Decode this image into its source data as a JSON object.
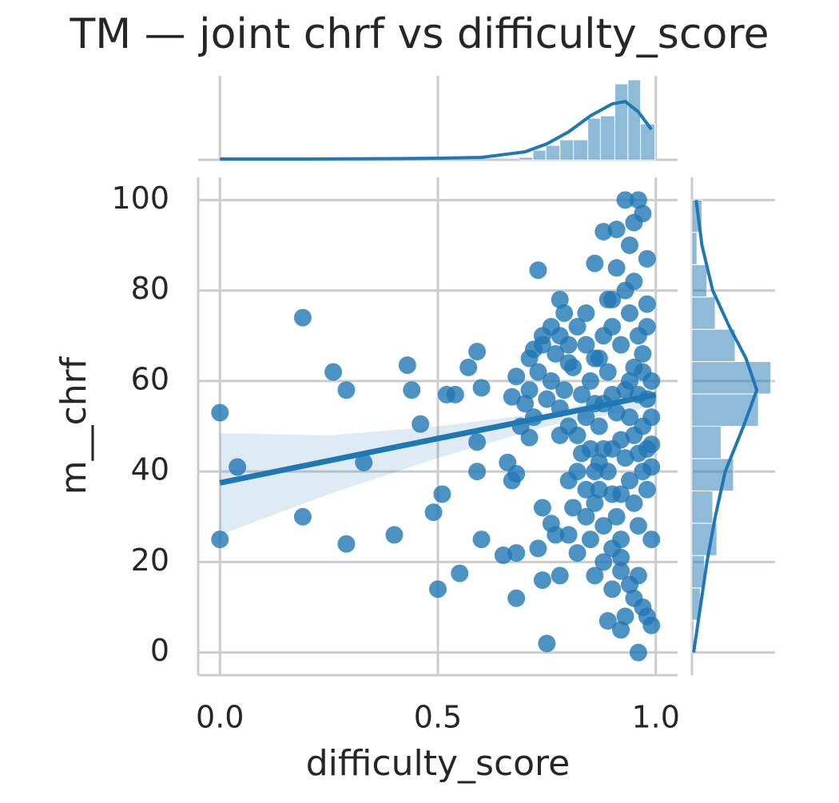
{
  "chart_data": {
    "type": "scatter",
    "title": "TM — joint chrf vs difficulty_score",
    "x_label": "difficulty_score",
    "y_label": "m__chrf",
    "xlim": [
      -0.05,
      1.05
    ],
    "ylim": [
      -5,
      105
    ],
    "xticks": [
      {
        "value": 0,
        "label": "0.0"
      },
      0.5,
      {
        "value": 1,
        "label": "1.0"
      }
    ],
    "yticks": [
      0,
      20,
      40,
      60,
      80,
      100
    ],
    "grid": true,
    "color": "#1f77b4",
    "series": [
      {
        "x": [
          0.0,
          0.0,
          0.04,
          0.19,
          0.19,
          0.26,
          0.29,
          0.29,
          0.33,
          0.4,
          0.43,
          0.44,
          0.46,
          0.49,
          0.5,
          0.51,
          0.52,
          0.54,
          0.55,
          0.57,
          0.59,
          0.59,
          0.59,
          0.6,
          0.6,
          0.65,
          0.66,
          0.67,
          0.67,
          0.68,
          0.68,
          0.68,
          0.68,
          0.71,
          0.71,
          0.72,
          0.73,
          0.73,
          0.74,
          0.74,
          0.75,
          0.76,
          0.77,
          0.78,
          0.78,
          0.79,
          0.78,
          0.8,
          0.8,
          0.82,
          0.84,
          0.84,
          0.86,
          0.86,
          0.87,
          0.88,
          0.88,
          0.89,
          0.9,
          0.9,
          0.91,
          0.92,
          0.92,
          0.93,
          0.94,
          0.95,
          0.96,
          0.96,
          0.97,
          0.98,
          0.98,
          0.99,
          0.99,
          0.99,
          0.98,
          0.85,
          0.86,
          0.87,
          0.88,
          0.89,
          0.9,
          0.91,
          0.92,
          0.93,
          0.94,
          0.95,
          0.96,
          0.97,
          0.98,
          0.99,
          0.85,
          0.86,
          0.87,
          0.88,
          0.89,
          0.9,
          0.91,
          0.92,
          0.93,
          0.94,
          0.95,
          0.96,
          0.97,
          0.98,
          0.99,
          0.84,
          0.83,
          0.82,
          0.81,
          0.8,
          0.79,
          0.78,
          0.77,
          0.76,
          0.75,
          0.74,
          0.73,
          0.72,
          0.71,
          0.7,
          0.69,
          0.9,
          0.92,
          0.94,
          0.96,
          0.98,
          0.93,
          0.95,
          0.97,
          0.91,
          0.89,
          0.87,
          0.86,
          0.88,
          0.9,
          0.92,
          0.94,
          0.96,
          0.97,
          0.95,
          0.93,
          0.85,
          0.84,
          0.83,
          0.82,
          0.81,
          0.8,
          0.95,
          0.96,
          0.97,
          0.98,
          0.99,
          0.94,
          0.92,
          0.9,
          0.88,
          0.86,
          0.84,
          0.82,
          0.8,
          0.78,
          0.76,
          0.74
        ],
        "values": [
          53,
          25,
          41,
          74,
          30,
          62,
          58,
          24,
          42,
          26,
          63.5,
          58,
          50.5,
          31,
          14,
          35,
          57,
          57,
          17.5,
          63,
          66.5,
          46.5,
          40,
          58.5,
          25,
          21.5,
          42,
          56.5,
          38,
          12,
          61,
          22,
          39.5,
          65,
          47.5,
          67,
          84.5,
          23,
          32,
          16,
          2,
          28.5,
          26,
          17,
          78,
          75,
          48,
          38,
          26,
          22,
          30,
          75,
          17,
          86,
          36,
          93,
          20,
          7,
          14,
          78,
          93.5,
          5,
          21,
          100,
          90,
          95,
          100,
          0,
          97,
          87,
          8,
          6,
          25,
          60,
          77,
          60,
          55,
          50,
          45,
          40,
          35,
          30,
          25,
          58,
          52,
          48,
          44,
          40,
          36,
          52,
          45,
          40,
          65,
          70,
          62,
          57,
          53,
          47,
          43,
          38,
          33,
          28,
          62,
          56,
          46,
          52,
          57,
          48,
          63,
          68,
          58,
          54,
          66,
          60,
          56,
          70,
          62,
          52,
          58,
          55,
          50,
          72,
          68,
          75,
          70,
          72,
          80,
          82,
          66,
          85,
          78,
          42,
          33,
          28,
          23,
          18,
          15,
          17,
          10,
          12,
          8,
          25,
          36,
          44,
          40,
          32,
          50,
          63,
          57,
          50,
          45,
          41,
          60,
          35,
          45,
          55,
          65,
          68,
          72,
          64,
          70,
          72,
          68
        ]
      }
    ],
    "regression": {
      "x": [
        0,
        0.25,
        0.5,
        0.75,
        1
      ],
      "y": [
        37.5,
        42.4,
        47.3,
        52.1,
        57
      ],
      "ci_lower": [
        26,
        35,
        43,
        50,
        54.5
      ],
      "ci_upper": [
        48.5,
        48,
        50,
        53,
        58.5
      ]
    },
    "top_marginal": {
      "ylim": [
        0,
        105
      ],
      "bins": [
        0.686,
        0.718,
        0.748,
        0.78,
        0.811,
        0.844,
        0.873,
        0.906,
        0.936,
        0.965,
        0.998
      ],
      "counts": [
        3,
        12,
        18,
        25,
        25,
        52,
        55,
        95,
        100,
        45
      ],
      "kde_x": [
        0,
        0.2,
        0.4,
        0.5,
        0.6,
        0.7,
        0.75,
        0.8,
        0.85,
        0.9,
        0.93,
        0.96,
        0.99
      ],
      "kde_y": [
        1,
        1,
        1.5,
        2,
        3,
        10,
        20,
        35,
        55,
        70,
        73,
        60,
        38
      ]
    },
    "right_marginal": {
      "xlim": [
        0,
        100
      ],
      "bins": [
        0,
        7.14,
        14.29,
        21.43,
        28.57,
        35.71,
        42.86,
        50,
        57.14,
        64.29,
        71.43,
        78.57,
        85.71,
        92.86,
        100
      ],
      "counts": [
        2,
        10,
        15,
        30,
        25,
        50,
        35,
        80,
        95,
        52,
        28,
        18,
        6,
        12
      ],
      "kde_y": [
        0,
        10,
        20,
        30,
        40,
        50,
        58,
        65,
        72,
        80,
        90,
        100
      ],
      "kde_x": [
        2,
        10,
        18,
        28,
        40,
        62,
        78,
        65,
        45,
        25,
        12,
        5
      ]
    }
  }
}
